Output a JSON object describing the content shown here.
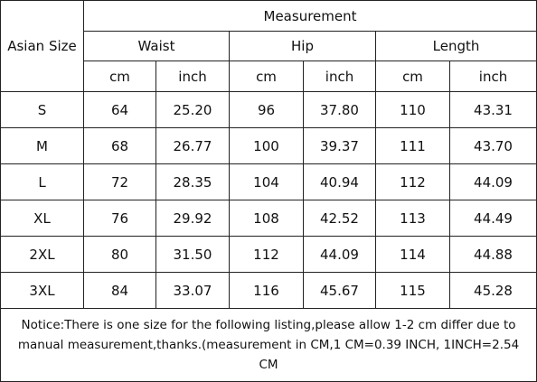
{
  "table": {
    "title": "Measurement",
    "row_header": "Asian Size",
    "groups": [
      "Waist",
      "Hip",
      "Length"
    ],
    "units": [
      "cm",
      "inch",
      "cm",
      "inch",
      "cm",
      "inch"
    ],
    "rows": [
      [
        "S",
        "64",
        "25.20",
        "96",
        "37.80",
        "110",
        "43.31"
      ],
      [
        "M",
        "68",
        "26.77",
        "100",
        "39.37",
        "111",
        "43.70"
      ],
      [
        "L",
        "72",
        "28.35",
        "104",
        "40.94",
        "112",
        "44.09"
      ],
      [
        "XL",
        "76",
        "29.92",
        "108",
        "42.52",
        "113",
        "44.49"
      ],
      [
        "2XL",
        "80",
        "31.50",
        "112",
        "44.09",
        "114",
        "44.88"
      ],
      [
        "3XL",
        "84",
        "33.07",
        "116",
        "45.67",
        "115",
        "45.28"
      ]
    ]
  },
  "notice": "Notice:There is one size for the following listing,please allow 1-2 cm differ due to manual measurement,thanks.(measurement in CM,1 CM=0.39 INCH, 1INCH=2.54 CM"
}
